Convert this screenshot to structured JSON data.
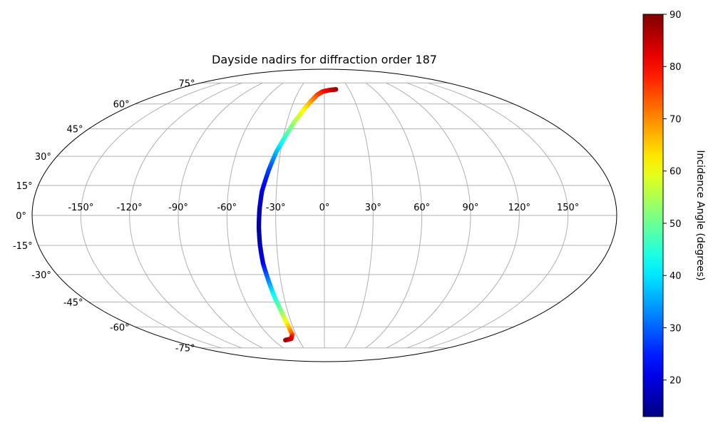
{
  "chart_data": {
    "type": "scatter",
    "projection": "mollweide",
    "title": "Dayside nadirs for diffraction order 187",
    "xlabel": "",
    "ylabel": "",
    "grid": true,
    "longitude_ticks": [
      -150,
      -120,
      -90,
      -60,
      -30,
      0,
      30,
      60,
      90,
      120,
      150
    ],
    "longitude_tick_labels": [
      "-150°",
      "-120°",
      "-90°",
      "-60°",
      "-30°",
      "0°",
      "30°",
      "60°",
      "90°",
      "120°",
      "150°"
    ],
    "latitude_ticks": [
      -75,
      -60,
      -45,
      -30,
      -15,
      0,
      15,
      30,
      45,
      60,
      75
    ],
    "latitude_tick_labels": [
      "-75°",
      "-60°",
      "-45°",
      "-30°",
      "-15°",
      "0°",
      "15°",
      "30°",
      "45°",
      "60°",
      "75°"
    ],
    "colorbar": {
      "label": "Incidence Angle (degrees)",
      "colormap": "jet",
      "range": [
        13,
        90
      ],
      "ticks": [
        20,
        30,
        40,
        50,
        60,
        70,
        80,
        90
      ],
      "tick_labels": [
        "20",
        "30",
        "40",
        "50",
        "60",
        "70",
        "80",
        "90"
      ]
    },
    "track": [
      {
        "lon": 14,
        "lat": 70,
        "incidence": 88
      },
      {
        "lon": 6,
        "lat": 69.5,
        "incidence": 85
      },
      {
        "lon": -2,
        "lat": 68.5,
        "incidence": 80
      },
      {
        "lon": -8,
        "lat": 66,
        "incidence": 76
      },
      {
        "lon": -13,
        "lat": 62,
        "incidence": 70
      },
      {
        "lon": -18,
        "lat": 57,
        "incidence": 63
      },
      {
        "lon": -24,
        "lat": 49,
        "incidence": 55
      },
      {
        "lon": -29,
        "lat": 40,
        "incidence": 46
      },
      {
        "lon": -33,
        "lat": 32,
        "incidence": 37
      },
      {
        "lon": -36,
        "lat": 23,
        "incidence": 28
      },
      {
        "lon": -39,
        "lat": 12,
        "incidence": 21
      },
      {
        "lon": -40,
        "lat": 3,
        "incidence": 17
      },
      {
        "lon": -40.5,
        "lat": -6,
        "incidence": 15
      },
      {
        "lon": -40.5,
        "lat": -15,
        "incidence": 17
      },
      {
        "lon": -40,
        "lat": -24,
        "incidence": 22
      },
      {
        "lon": -38.5,
        "lat": -33,
        "incidence": 32
      },
      {
        "lon": -37,
        "lat": -42,
        "incidence": 43
      },
      {
        "lon": -35,
        "lat": -51,
        "incidence": 52
      },
      {
        "lon": -34,
        "lat": -59,
        "incidence": 63
      },
      {
        "lon": -34,
        "lat": -65,
        "incidence": 73
      },
      {
        "lon": -38,
        "lat": -68,
        "incidence": 82
      },
      {
        "lon": -46,
        "lat": -69,
        "incidence": 87
      }
    ]
  }
}
